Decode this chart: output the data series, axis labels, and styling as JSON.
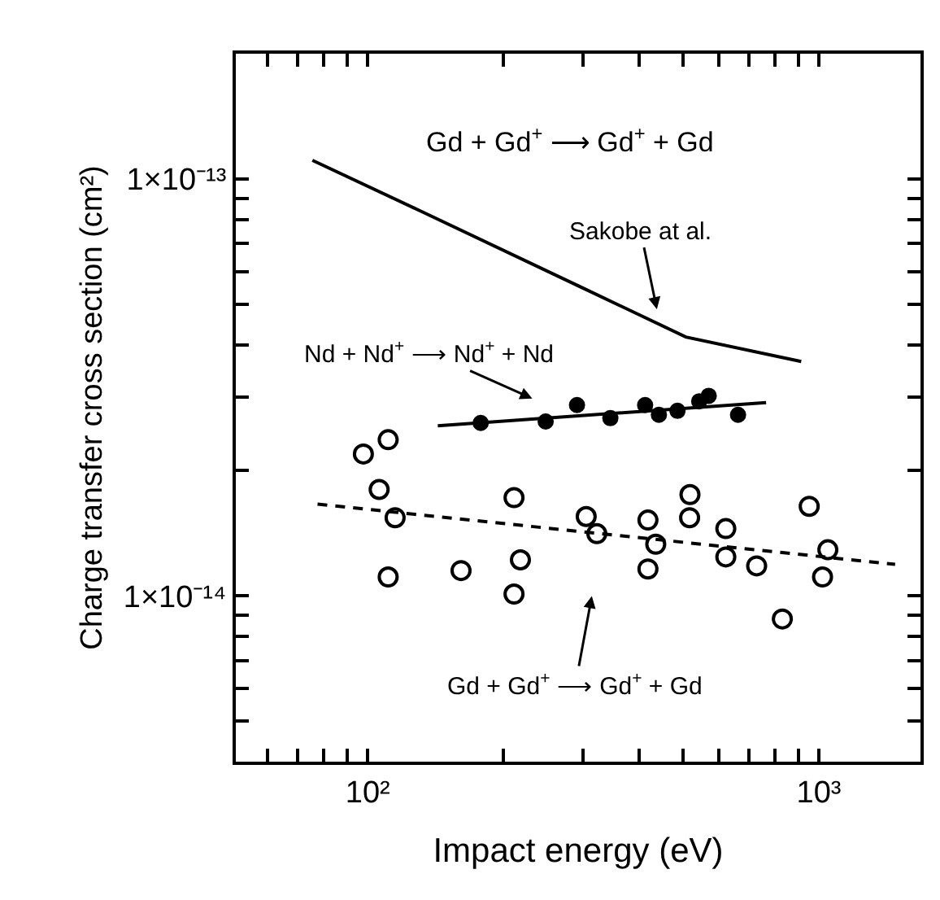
{
  "chart_data": {
    "type": "scatter",
    "xlabel": "Impact energy (eV)",
    "ylabel": "Charge transfer cross section (cm²)",
    "log": "xy",
    "xlim": [
      51,
      1680
    ],
    "ylim": [
      4e-15,
      2e-13
    ],
    "xticks": [
      {
        "value": 60,
        "label": null
      },
      {
        "value": 70,
        "label": null
      },
      {
        "value": 80,
        "label": null
      },
      {
        "value": 90,
        "label": null
      },
      {
        "value": 100,
        "label": "10²"
      },
      {
        "value": 200,
        "label": null
      },
      {
        "value": 300,
        "label": null
      },
      {
        "value": 400,
        "label": null
      },
      {
        "value": 500,
        "label": null
      },
      {
        "value": 600,
        "label": null
      },
      {
        "value": 700,
        "label": null
      },
      {
        "value": 800,
        "label": null
      },
      {
        "value": 900,
        "label": null
      },
      {
        "value": 1000,
        "label": "10³"
      }
    ],
    "yticks": [
      {
        "value": 5e-15,
        "label": null
      },
      {
        "value": 6e-15,
        "label": null
      },
      {
        "value": 7e-15,
        "label": null
      },
      {
        "value": 8e-15,
        "label": null
      },
      {
        "value": 9e-15,
        "label": null
      },
      {
        "value": 1e-14,
        "label": "1×10⁻¹⁴"
      },
      {
        "value": 2e-14,
        "label": null
      },
      {
        "value": 3e-14,
        "label": null
      },
      {
        "value": 4e-14,
        "label": null
      },
      {
        "value": 5e-14,
        "label": null
      },
      {
        "value": 6e-14,
        "label": null
      },
      {
        "value": 7e-14,
        "label": null
      },
      {
        "value": 8e-14,
        "label": null
      },
      {
        "value": 9e-14,
        "label": null
      },
      {
        "value": 1e-13,
        "label": "1×10⁻¹³"
      }
    ],
    "series": [
      {
        "type": "line",
        "color": "#000000",
        "line_style": "solid",
        "marker": "none",
        "x": [
          75.4,
          132,
          301,
          507,
          914
        ],
        "values": [
          1.11e-13,
          8.35e-14,
          5.47e-14,
          4.18e-14,
          3.65e-14
        ]
      },
      {
        "type": "line",
        "color": "#000000",
        "line_style": "solid",
        "marker": "none",
        "x": [
          143,
          764
        ],
        "values": [
          2.56e-14,
          2.91e-14
        ]
      },
      {
        "color": "#000000",
        "marker": "circle",
        "x": [
          178,
          248,
          291,
          345,
          412,
          442,
          486,
          543,
          570,
          662
        ],
        "values": [
          2.6e-14,
          2.62e-14,
          2.87e-14,
          2.67e-14,
          2.87e-14,
          2.72e-14,
          2.78e-14,
          2.93e-14,
          3.02e-14,
          2.72e-14
        ]
      },
      {
        "type": "line",
        "color": "#000000",
        "line_style": "dashed",
        "marker": "none",
        "x": [
          77.4,
          1476
        ],
        "values": [
          1.66e-14,
          1.19e-14
        ]
      },
      {
        "color": "#000000",
        "marker": "circle-open",
        "x": [
          97.8,
          111,
          106,
          115,
          111,
          161,
          211,
          218,
          211,
          305,
          322,
          418,
          435,
          418,
          518,
          517,
          622,
          622,
          728,
          830,
          952,
          1047,
          1019
        ],
        "values": [
          2.19e-14,
          2.37e-14,
          1.8e-14,
          1.54e-14,
          1.11e-14,
          1.15e-14,
          1.72e-14,
          1.22e-14,
          1.01e-14,
          1.55e-14,
          1.41e-14,
          1.52e-14,
          1.33e-14,
          1.16e-14,
          1.75e-14,
          1.54e-14,
          1.45e-14,
          1.24e-14,
          1.18e-14,
          8.8e-15,
          1.64e-14,
          1.29e-14,
          1.11e-14
        ]
      }
    ],
    "annotations": [
      "Gd + Gd$^{+}$ ⟶ Gd$^{+}$ + Gd",
      "Sakobe at al.",
      "Nd + Nd$^{+}$ ⟶ Nd$^{+}$ + Nd",
      "Gd + Gd$^{+}$ ⟶ Gd$^{+}$ + Gd"
    ]
  }
}
